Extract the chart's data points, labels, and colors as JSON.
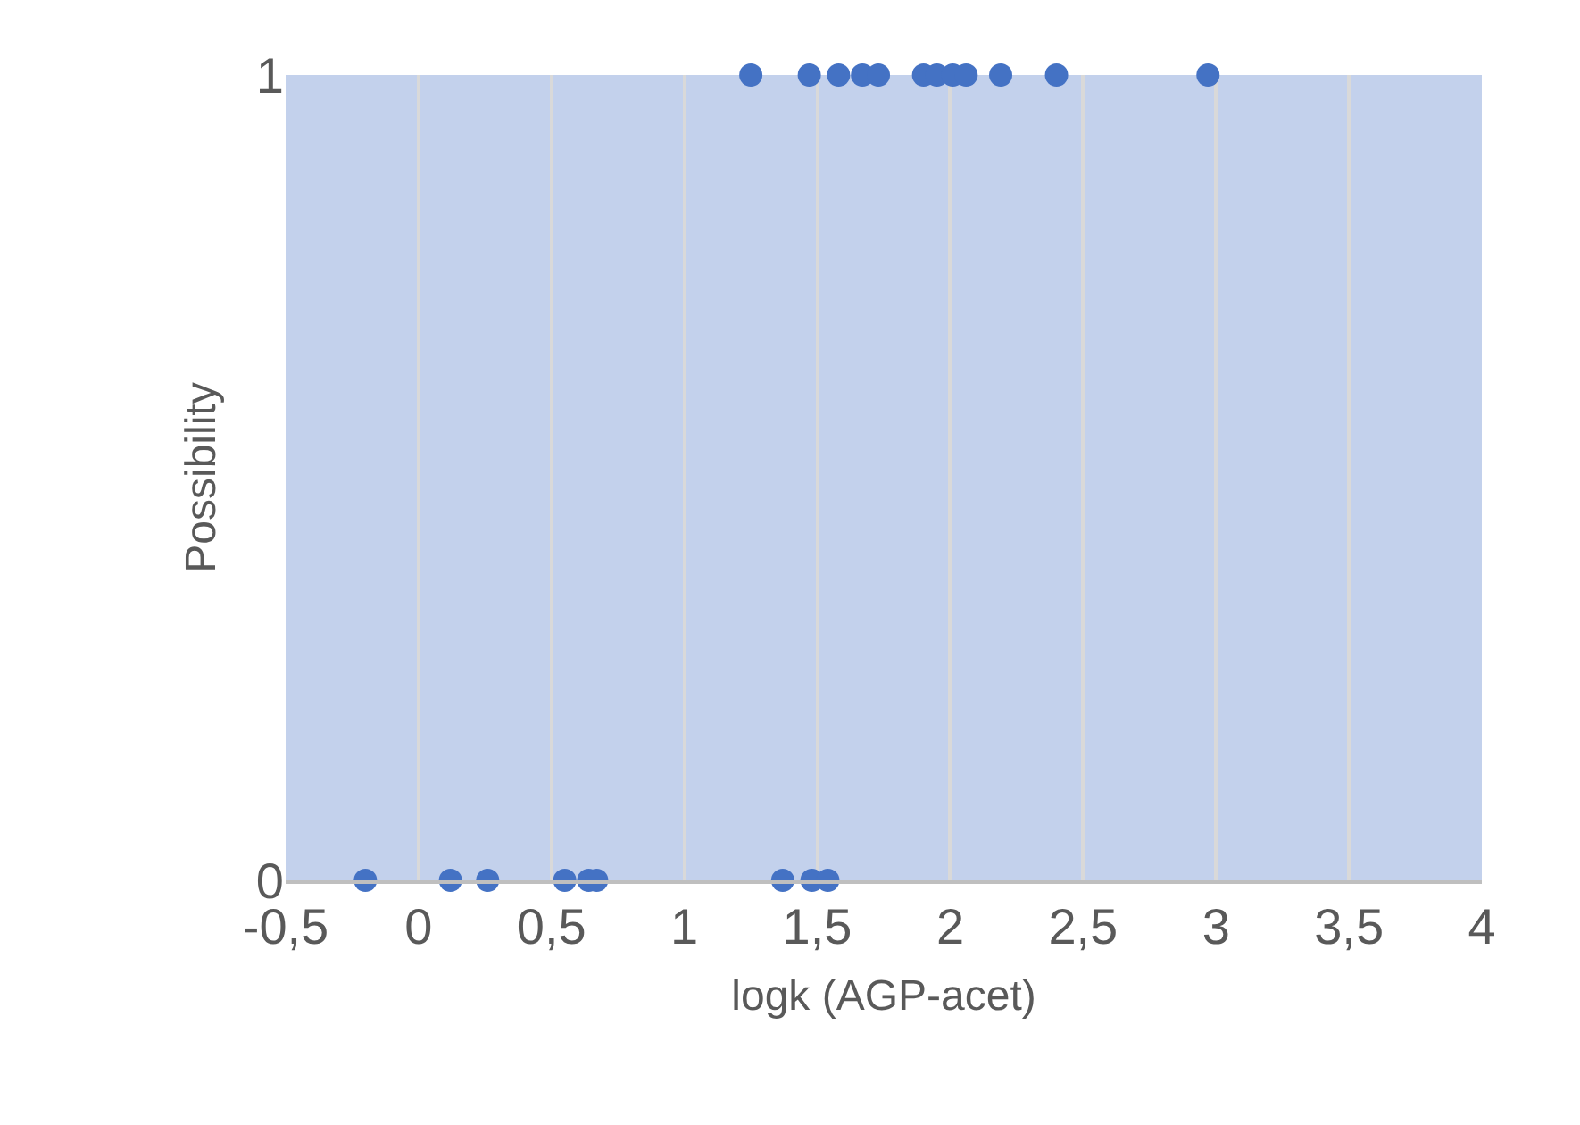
{
  "chart_data": {
    "type": "scatter",
    "xlabel": "logk (AGP-acet)",
    "ylabel": "Possibility",
    "series": [
      {
        "color": "#4472c4",
        "x": [
          1.25,
          1.47,
          1.58,
          1.67,
          1.73,
          1.9,
          1.95,
          2.01,
          2.06,
          2.19,
          2.4,
          2.97,
          -0.2,
          0.12,
          0.26,
          0.55,
          0.64,
          0.67,
          1.37,
          1.48,
          1.54
        ],
        "values": [
          1,
          1,
          1,
          1,
          1,
          1,
          1,
          1,
          1,
          1,
          1,
          1,
          0,
          0,
          0,
          0,
          0,
          0,
          0,
          0,
          0
        ]
      }
    ],
    "xlim": [
      -0.5,
      4
    ],
    "xticks": [
      {
        "value": -0.5,
        "label": "-0,5"
      },
      0,
      {
        "value": 0.5,
        "label": "0,5"
      },
      1,
      {
        "value": 1.5,
        "label": "1,5"
      },
      2,
      {
        "value": 2.5,
        "label": "2,5"
      },
      3,
      {
        "value": 3.5,
        "label": "3,5"
      },
      4
    ],
    "ylim": [
      0,
      1
    ],
    "yticks": [
      0,
      1
    ],
    "grid": "x",
    "marker": "circle",
    "legend": false
  }
}
